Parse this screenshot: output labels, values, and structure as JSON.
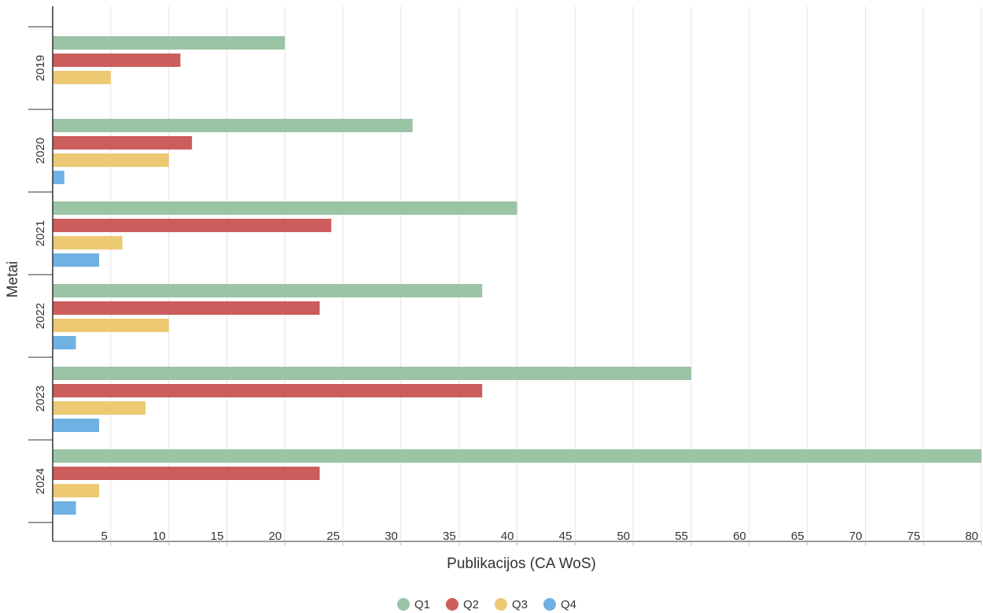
{
  "chart_data": {
    "type": "bar",
    "orientation": "horizontal",
    "categories": [
      "2019",
      "2020",
      "2021",
      "2022",
      "2023",
      "2024"
    ],
    "series": [
      {
        "name": "Q1",
        "color": "#9bc4a6",
        "values": [
          20,
          31,
          40,
          37,
          55,
          80
        ]
      },
      {
        "name": "Q2",
        "color": "#cd5c5c",
        "values": [
          11,
          12,
          24,
          23,
          37,
          23
        ]
      },
      {
        "name": "Q3",
        "color": "#ecc972",
        "values": [
          5,
          10,
          6,
          10,
          8,
          4
        ]
      },
      {
        "name": "Q4",
        "color": "#6fb1e3",
        "values": [
          0,
          1,
          4,
          2,
          4,
          2
        ]
      }
    ],
    "xlabel": "Publikacijos (CA WoS)",
    "ylabel": "Metai",
    "xlim": [
      0,
      80
    ],
    "xticks": [
      5,
      10,
      15,
      20,
      25,
      30,
      35,
      40,
      45,
      50,
      55,
      60,
      65,
      70,
      75,
      80
    ],
    "grid": "vertical",
    "legend_position": "bottom-center"
  }
}
